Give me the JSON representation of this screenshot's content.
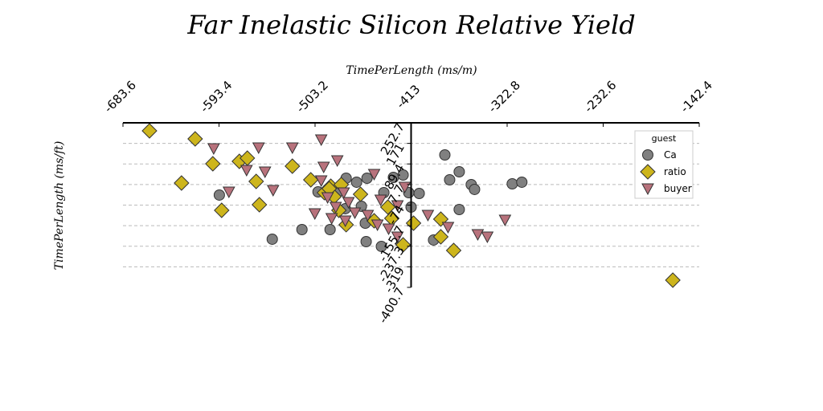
{
  "chart_data": {
    "type": "scatter",
    "title": "Far Inelastic Silicon Relative Yield",
    "x_label": "TimePerLength (ms/m)",
    "y_label": "TimePerLength (ms/ft)",
    "xlim": [
      -683.6,
      -142.4
    ],
    "xticks": [
      -683.6,
      -593.4,
      -503.2,
      -413.0,
      -322.8,
      -232.6,
      -142.4
    ],
    "ylim": [
      -400.7,
      252.7
    ],
    "yticks": [
      252.7,
      171.0,
      89.4,
      7.7,
      -74.0,
      -155.7,
      -237.3,
      -319.0,
      -400.7
    ],
    "grid": true,
    "legend_title": "guest",
    "legend_position": "upper right",
    "series": [
      {
        "name": "Ca",
        "color": "#808080",
        "marker": "circle",
        "x": [
          -593.1,
          -543.4,
          -515.5,
          -489.1,
          -500.4,
          -474.0,
          -464.2,
          -454.4,
          -429.6,
          -420.5,
          -438.6,
          -459.7,
          -456.0,
          -455.2,
          -440.9,
          -415.2,
          -413.0,
          -405.4,
          -381.3,
          -376.8,
          -367.8,
          -356.5,
          -353.4,
          -367.8,
          -391.9,
          -318.0,
          -309.0,
          -482.3,
          -474.8
        ],
        "values": [
          -34.1,
          -209.4,
          -171.2,
          -171.2,
          -21.4,
          32.8,
          16.9,
          32.8,
          36.0,
          45.5,
          -24.6,
          -78.7,
          -145.7,
          -219.0,
          -238.1,
          -24.6,
          -81.9,
          -27.8,
          125.2,
          26.4,
          58.3,
          7.3,
          -11.8,
          -91.5,
          -212.6,
          10.5,
          16.9,
          -24.6,
          -88.3
        ]
      },
      {
        "name": "ratio",
        "color": "#cdb51c",
        "marker": "diamond",
        "x": [
          -658.7,
          -615.8,
          -599.2,
          -628.6,
          -590.9,
          -574.3,
          -566.8,
          -558.5,
          -555.5,
          -524.5,
          -507.2,
          -494.4,
          -488.4,
          -485.4,
          -478.6,
          -474.0,
          -460.5,
          -447.7,
          -434.8,
          -431.1,
          -420.5,
          -410.7,
          -385.1,
          -385.1,
          -373.0,
          -167.2,
          -489.9,
          -480.8
        ],
        "values": [
          220.8,
          189.0,
          90.2,
          13.7,
          -94.7,
          99.7,
          112.5,
          20.0,
          -72.4,
          80.6,
          26.4,
          -24.6,
          0.9,
          -40.5,
          7.3,
          -152.0,
          -30.9,
          -136.1,
          -81.9,
          -126.6,
          -231.7,
          -145.7,
          -129.7,
          -199.9,
          -254.0,
          -372.0,
          -8.6,
          -94.7
        ]
      },
      {
        "name": "buyer",
        "color": "#b8727c",
        "marker": "triangle",
        "x": [
          -598.4,
          -584.1,
          -567.5,
          -556.2,
          -550.2,
          -542.6,
          -524.5,
          -503.4,
          -497.4,
          -495.1,
          -482.3,
          -497.4,
          -491.4,
          -487.6,
          -483.8,
          -476.3,
          -471.8,
          -474.8,
          -447.7,
          -441.6,
          -444.6,
          -434.1,
          -425.8,
          -425.8,
          -419.0,
          -397.2,
          -378.3,
          -350.4,
          -341.4,
          -324.8,
          -465.8,
          -453.7
        ],
        "values": [
          150.7,
          -21.4,
          64.7,
          153.9,
          58.3,
          -15.0,
          153.9,
          -107.4,
          185.8,
          77.4,
          102.9,
          23.2,
          -43.7,
          -126.6,
          -81.9,
          -24.6,
          -62.8,
          -136.1,
          48.7,
          -53.3,
          -152.0,
          -168.0,
          -199.9,
          -75.6,
          -2.3,
          -113.8,
          -161.6,
          -190.3,
          -199.9,
          -132.9,
          -104.2,
          -113.8
        ]
      }
    ]
  }
}
